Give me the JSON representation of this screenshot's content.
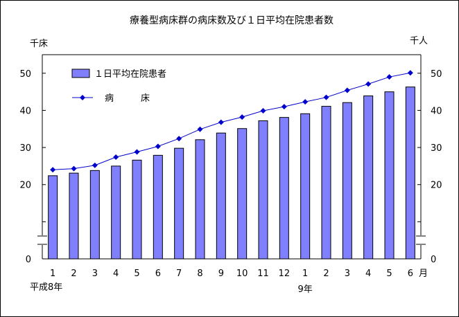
{
  "chart_data": {
    "type": "bar",
    "title": "療養型病床群の病床数及び１日平均在院患者数",
    "categories": [
      "1",
      "2",
      "3",
      "4",
      "5",
      "6",
      "7",
      "8",
      "9",
      "10",
      "11",
      "12",
      "1",
      "2",
      "3",
      "4",
      "5",
      "6"
    ],
    "month_suffix": "月",
    "year_labels": [
      {
        "text": "平成8年",
        "at_index": 0
      },
      {
        "text": "9年",
        "at_index": 12
      }
    ],
    "left_axis": {
      "unit": "千床",
      "ylim": [
        0,
        55
      ],
      "ticks": [
        0,
        10,
        20,
        30,
        40,
        50
      ],
      "tick_labels": [
        "0",
        "",
        "20",
        "30",
        "40",
        "50"
      ]
    },
    "right_axis": {
      "unit": "千人",
      "ylim": [
        0,
        55
      ],
      "ticks": [
        0,
        10,
        20,
        30,
        40,
        50
      ],
      "tick_labels": [
        "0",
        "",
        "20",
        "30",
        "40",
        "50"
      ]
    },
    "axis_break": true,
    "series": [
      {
        "name": "１日平均在院患者",
        "kind": "bar",
        "color": "#8080ff",
        "values": [
          22.4,
          23.1,
          23.8,
          25.0,
          26.6,
          27.9,
          29.8,
          32.1,
          33.9,
          35.1,
          37.2,
          38.1,
          39.1,
          41.1,
          42.1,
          43.9,
          45.0,
          46.3
        ]
      },
      {
        "name": "病　　　床",
        "kind": "line",
        "color": "#0000cc",
        "values": [
          24.0,
          24.3,
          25.2,
          27.4,
          28.8,
          30.3,
          32.4,
          34.9,
          36.8,
          38.2,
          39.9,
          41.0,
          42.3,
          43.5,
          45.4,
          47.1,
          49.0,
          50.1
        ]
      }
    ],
    "legend_position": "top-left",
    "grid": false
  }
}
